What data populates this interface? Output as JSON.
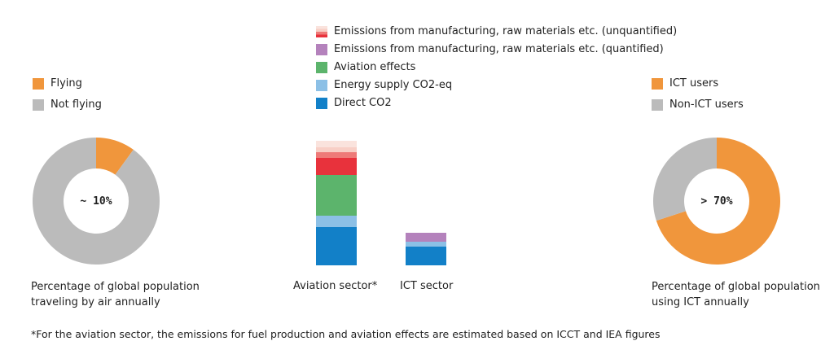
{
  "colors": {
    "orange": "#f0963c",
    "gray": "#bbbbbb",
    "direct_co2": "#1280c8",
    "energy_supply": "#8cc0e6",
    "aviation_effects": "#5cb46c",
    "quantified": "#b482bc",
    "unq_red": "#e8323c",
    "unq_mid": "#ee7a78",
    "unq_pale": "#f8cfc6"
  },
  "chart_data": [
    {
      "type": "pie",
      "donut": true,
      "legend": [
        "Flying",
        "Not flying"
      ],
      "slices": [
        {
          "name": "Flying",
          "value": 10,
          "color": "#f0963c"
        },
        {
          "name": "Not flying",
          "value": 90,
          "color": "#bbbbbb"
        }
      ],
      "center_label": "~ 10%",
      "caption": [
        "Percentage of global population",
        "traveling by air annually"
      ]
    },
    {
      "type": "bar",
      "stacked": true,
      "categories": [
        "Aviation sector*",
        "ICT sector"
      ],
      "legend": [
        "Emissions from manufacturing, raw materials etc. (unquantified)",
        "Emissions from manufacturing, raw materials etc. (quantified)",
        "Aviation effects",
        "Energy supply CO2-eq",
        "Direct CO2"
      ],
      "series": [
        {
          "name": "Direct CO2",
          "color": "#1280c8",
          "values": [
            47,
            23
          ]
        },
        {
          "name": "Energy supply CO2-eq",
          "color": "#8cc0e6",
          "values": [
            14,
            6
          ]
        },
        {
          "name": "Aviation effects",
          "color": "#5cb46c",
          "values": [
            50,
            0
          ]
        },
        {
          "name": "Emissions from manufacturing, raw materials etc. (quantified)",
          "color": "#b482bc",
          "values": [
            0,
            11
          ]
        },
        {
          "name": "Emissions from manufacturing, raw materials etc. (unquantified)",
          "segments": [
            {
              "color": "#e8323c",
              "values": [
                21,
                0
              ]
            },
            {
              "color": "#ee7a78",
              "values": [
                7,
                0
              ]
            },
            {
              "color": "#f8cfc6",
              "values": [
                6,
                0
              ]
            },
            {
              "color": "#fae3dd",
              "values": [
                8,
                0
              ]
            }
          ]
        }
      ],
      "ylim": [
        0,
        160
      ]
    },
    {
      "type": "pie",
      "donut": true,
      "legend": [
        "ICT users",
        "Non-ICT users"
      ],
      "slices": [
        {
          "name": "ICT users",
          "value": 70,
          "color": "#f0963c"
        },
        {
          "name": "Non-ICT users",
          "value": 30,
          "color": "#bbbbbb"
        }
      ],
      "center_label": "> 70%",
      "caption": [
        "Percentage of global population",
        "using ICT annually"
      ]
    }
  ],
  "footnote": "*For the aviation sector, the emissions for fuel production and aviation effects are estimated based on ICCT and IEA figures"
}
